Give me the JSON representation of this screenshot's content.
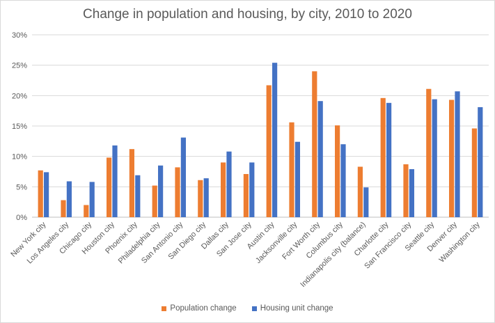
{
  "chart_data": {
    "type": "bar",
    "title": "Change in population and housing, by city, 2010 to 2020",
    "xlabel": "",
    "ylabel": "",
    "ylim": [
      0,
      30
    ],
    "yticks": [
      "0%",
      "5%",
      "10%",
      "15%",
      "20%",
      "25%",
      "30%"
    ],
    "ytick_values": [
      0,
      5,
      10,
      15,
      20,
      25,
      30
    ],
    "grid": true,
    "legend_position": "bottom",
    "categories": [
      "New York city",
      "Los Angeles city",
      "Chicago city",
      "Houston city",
      "Phoenix city",
      "Philadelphia city",
      "San Antonio city",
      "San Diego city",
      "Dallas city",
      "San Jose city",
      "Austin city",
      "Jacksonville city",
      "Fort Worth city",
      "Columbus city",
      "Indianapolis city (balance)",
      "Charlotte city",
      "San Francisco city",
      "Seattle city",
      "Denver city",
      "Washington city"
    ],
    "series": [
      {
        "name": "Population change",
        "color": "#ed7d31",
        "values": [
          7.7,
          2.8,
          2.0,
          9.8,
          11.2,
          5.2,
          8.2,
          6.1,
          9.0,
          7.1,
          21.7,
          15.6,
          24.0,
          15.1,
          8.3,
          19.6,
          8.7,
          21.1,
          19.3,
          14.6
        ]
      },
      {
        "name": "Housing unit change",
        "color": "#4472c4",
        "values": [
          7.4,
          5.9,
          5.8,
          11.8,
          6.9,
          8.5,
          13.1,
          6.4,
          10.8,
          9.0,
          25.4,
          12.4,
          19.1,
          12.0,
          4.9,
          18.8,
          7.9,
          19.4,
          20.7,
          18.1
        ]
      }
    ]
  }
}
